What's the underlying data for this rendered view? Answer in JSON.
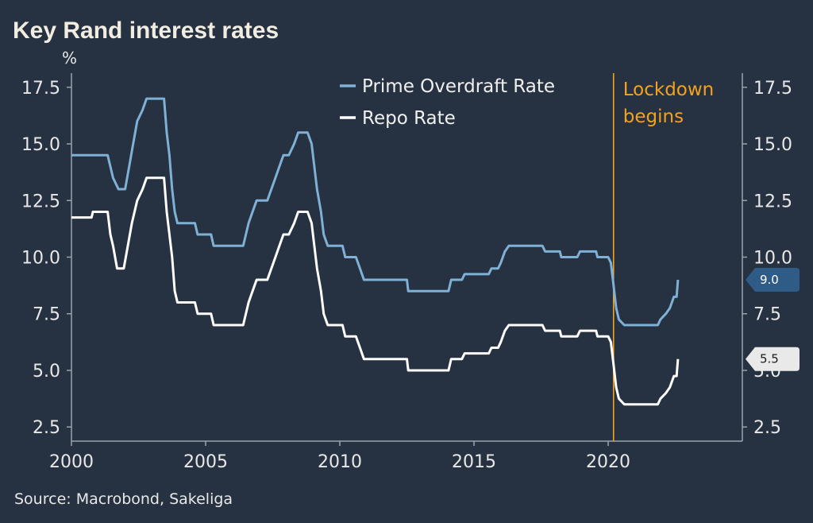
{
  "chart_data": {
    "type": "line",
    "title": "Key Rand interest rates",
    "ylabel": "%",
    "xlabel": "",
    "source": "Source: Macrobond, Sakeliga",
    "xlim": [
      2000,
      2025
    ],
    "ylim": [
      1.875,
      18.125
    ],
    "x_ticks": [
      2000,
      2005,
      2010,
      2015,
      2020
    ],
    "x_tick_labels": [
      "2000",
      "2005",
      "2010",
      "2015",
      "2020"
    ],
    "y_ticks": [
      2.5,
      5.0,
      7.5,
      10.0,
      12.5,
      15.0,
      17.5
    ],
    "y_tick_labels": [
      "2.5",
      "5.0",
      "7.5",
      "10.0",
      "12.5",
      "15.0",
      "17.5"
    ],
    "grid": false,
    "legend_position": "top-center",
    "series": [
      {
        "name": "Prime Overdraft Rate",
        "color": "#7fb0d5",
        "end_label": "9.0",
        "end_label_bg": "#2f5b87",
        "end_label_color": "#ffffff",
        "points": [
          [
            2000.0,
            14.5
          ],
          [
            2001.35,
            14.5
          ],
          [
            2001.45,
            14.0
          ],
          [
            2001.55,
            13.5
          ],
          [
            2001.75,
            13.0
          ],
          [
            2002.0,
            13.0
          ],
          [
            2002.15,
            14.0
          ],
          [
            2002.3,
            15.0
          ],
          [
            2002.45,
            16.0
          ],
          [
            2002.65,
            16.5
          ],
          [
            2002.8,
            17.0
          ],
          [
            2003.45,
            17.0
          ],
          [
            2003.55,
            15.5
          ],
          [
            2003.65,
            14.5
          ],
          [
            2003.75,
            13.0
          ],
          [
            2003.85,
            12.0
          ],
          [
            2003.95,
            11.5
          ],
          [
            2004.6,
            11.5
          ],
          [
            2004.7,
            11.0
          ],
          [
            2005.2,
            11.0
          ],
          [
            2005.3,
            10.5
          ],
          [
            2006.4,
            10.5
          ],
          [
            2006.5,
            11.0
          ],
          [
            2006.6,
            11.5
          ],
          [
            2006.75,
            12.0
          ],
          [
            2006.9,
            12.5
          ],
          [
            2007.3,
            12.5
          ],
          [
            2007.45,
            13.0
          ],
          [
            2007.6,
            13.5
          ],
          [
            2007.75,
            14.0
          ],
          [
            2007.9,
            14.5
          ],
          [
            2008.1,
            14.5
          ],
          [
            2008.3,
            15.0
          ],
          [
            2008.45,
            15.5
          ],
          [
            2008.8,
            15.5
          ],
          [
            2008.95,
            15.0
          ],
          [
            2009.05,
            14.0
          ],
          [
            2009.15,
            13.0
          ],
          [
            2009.3,
            12.0
          ],
          [
            2009.4,
            11.0
          ],
          [
            2009.55,
            10.5
          ],
          [
            2010.1,
            10.5
          ],
          [
            2010.2,
            10.0
          ],
          [
            2010.6,
            10.0
          ],
          [
            2010.75,
            9.5
          ],
          [
            2010.9,
            9.0
          ],
          [
            2012.5,
            9.0
          ],
          [
            2012.55,
            8.5
          ],
          [
            2014.05,
            8.5
          ],
          [
            2014.15,
            9.0
          ],
          [
            2014.55,
            9.0
          ],
          [
            2014.65,
            9.25
          ],
          [
            2015.55,
            9.25
          ],
          [
            2015.65,
            9.5
          ],
          [
            2015.9,
            9.5
          ],
          [
            2016.0,
            9.75
          ],
          [
            2016.15,
            10.25
          ],
          [
            2016.3,
            10.5
          ],
          [
            2017.55,
            10.5
          ],
          [
            2017.65,
            10.25
          ],
          [
            2018.2,
            10.25
          ],
          [
            2018.25,
            10.0
          ],
          [
            2018.85,
            10.0
          ],
          [
            2018.95,
            10.25
          ],
          [
            2019.55,
            10.25
          ],
          [
            2019.6,
            10.0
          ],
          [
            2020.0,
            10.0
          ],
          [
            2020.1,
            9.75
          ],
          [
            2020.2,
            8.75
          ],
          [
            2020.3,
            7.75
          ],
          [
            2020.4,
            7.25
          ],
          [
            2020.6,
            7.0
          ],
          [
            2021.85,
            7.0
          ],
          [
            2021.95,
            7.25
          ],
          [
            2022.15,
            7.5
          ],
          [
            2022.3,
            7.75
          ],
          [
            2022.45,
            8.25
          ],
          [
            2022.55,
            8.25
          ],
          [
            2022.6,
            9.0
          ]
        ]
      },
      {
        "name": "Repo Rate",
        "color": "#ffffff",
        "end_label": "5.5",
        "end_label_bg": "#e9e9e9",
        "end_label_color": "#1a1a1a",
        "points": [
          [
            2000.0,
            11.75
          ],
          [
            2000.75,
            11.75
          ],
          [
            2000.8,
            12.0
          ],
          [
            2001.35,
            12.0
          ],
          [
            2001.45,
            11.0
          ],
          [
            2001.55,
            10.5
          ],
          [
            2001.7,
            9.5
          ],
          [
            2001.95,
            9.5
          ],
          [
            2002.1,
            10.5
          ],
          [
            2002.25,
            11.5
          ],
          [
            2002.45,
            12.5
          ],
          [
            2002.65,
            13.0
          ],
          [
            2002.8,
            13.5
          ],
          [
            2003.45,
            13.5
          ],
          [
            2003.55,
            12.0
          ],
          [
            2003.65,
            11.0
          ],
          [
            2003.75,
            10.0
          ],
          [
            2003.85,
            8.5
          ],
          [
            2003.95,
            8.0
          ],
          [
            2004.6,
            8.0
          ],
          [
            2004.7,
            7.5
          ],
          [
            2005.2,
            7.5
          ],
          [
            2005.3,
            7.0
          ],
          [
            2006.4,
            7.0
          ],
          [
            2006.5,
            7.5
          ],
          [
            2006.6,
            8.0
          ],
          [
            2006.75,
            8.5
          ],
          [
            2006.9,
            9.0
          ],
          [
            2007.3,
            9.0
          ],
          [
            2007.45,
            9.5
          ],
          [
            2007.6,
            10.0
          ],
          [
            2007.75,
            10.5
          ],
          [
            2007.9,
            11.0
          ],
          [
            2008.1,
            11.0
          ],
          [
            2008.3,
            11.5
          ],
          [
            2008.45,
            12.0
          ],
          [
            2008.8,
            12.0
          ],
          [
            2008.95,
            11.5
          ],
          [
            2009.05,
            10.5
          ],
          [
            2009.15,
            9.5
          ],
          [
            2009.3,
            8.5
          ],
          [
            2009.4,
            7.5
          ],
          [
            2009.55,
            7.0
          ],
          [
            2010.1,
            7.0
          ],
          [
            2010.2,
            6.5
          ],
          [
            2010.6,
            6.5
          ],
          [
            2010.75,
            6.0
          ],
          [
            2010.9,
            5.5
          ],
          [
            2012.5,
            5.5
          ],
          [
            2012.55,
            5.0
          ],
          [
            2014.05,
            5.0
          ],
          [
            2014.15,
            5.5
          ],
          [
            2014.55,
            5.5
          ],
          [
            2014.65,
            5.75
          ],
          [
            2015.55,
            5.75
          ],
          [
            2015.65,
            6.0
          ],
          [
            2015.9,
            6.0
          ],
          [
            2016.0,
            6.25
          ],
          [
            2016.15,
            6.75
          ],
          [
            2016.3,
            7.0
          ],
          [
            2017.55,
            7.0
          ],
          [
            2017.65,
            6.75
          ],
          [
            2018.2,
            6.75
          ],
          [
            2018.25,
            6.5
          ],
          [
            2018.85,
            6.5
          ],
          [
            2018.95,
            6.75
          ],
          [
            2019.55,
            6.75
          ],
          [
            2019.6,
            6.5
          ],
          [
            2020.0,
            6.5
          ],
          [
            2020.1,
            6.25
          ],
          [
            2020.2,
            5.25
          ],
          [
            2020.3,
            4.25
          ],
          [
            2020.4,
            3.75
          ],
          [
            2020.6,
            3.5
          ],
          [
            2021.85,
            3.5
          ],
          [
            2021.95,
            3.75
          ],
          [
            2022.15,
            4.0
          ],
          [
            2022.3,
            4.25
          ],
          [
            2022.45,
            4.75
          ],
          [
            2022.55,
            4.75
          ],
          [
            2022.6,
            5.5
          ]
        ]
      }
    ],
    "annotations": [
      {
        "type": "vline",
        "x": 2020.2,
        "text": "Lockdown\nbegins",
        "color": "#f5a21b"
      }
    ]
  }
}
